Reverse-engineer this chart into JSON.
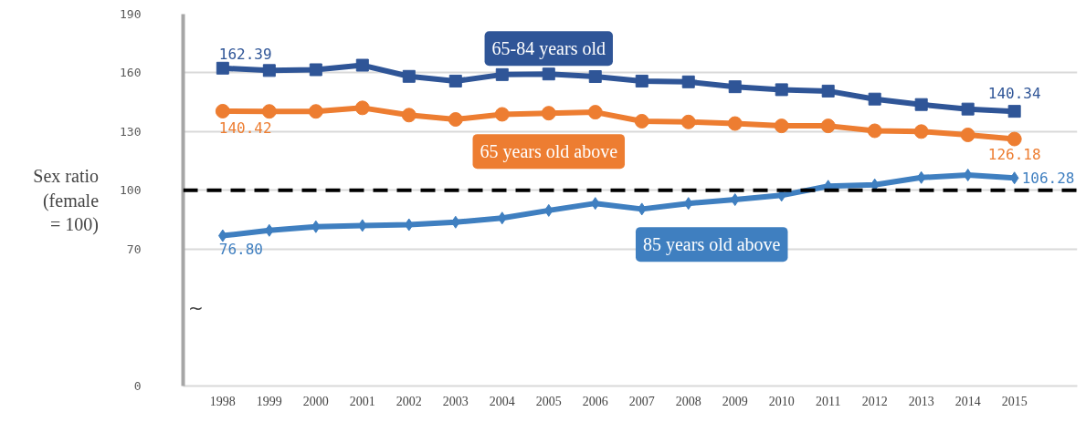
{
  "chart_data": {
    "type": "line",
    "ylabel": "Sex ratio (female = 100)",
    "categories": [
      "1998",
      "1999",
      "2000",
      "2001",
      "2002",
      "2003",
      "2004",
      "2005",
      "2006",
      "2007",
      "2008",
      "2009",
      "2010",
      "2011",
      "2012",
      "2013",
      "2014",
      "2015"
    ],
    "ylim": [
      0,
      190
    ],
    "yticks": [
      0,
      70,
      100,
      130,
      160,
      190
    ],
    "grid": "y",
    "series": [
      {
        "name": "65-84 years old",
        "color": "#2f5597",
        "marker": "square",
        "values": [
          162.39,
          161.2,
          161.6,
          163.9,
          158.2,
          155.8,
          159.1,
          159.4,
          158.1,
          155.8,
          155.4,
          152.9,
          151.4,
          150.7,
          146.6,
          143.8,
          141.5,
          140.34
        ],
        "value_labels": [
          "162.39",
          null,
          null,
          null,
          null,
          null,
          null,
          null,
          null,
          null,
          null,
          null,
          null,
          null,
          null,
          null,
          null,
          "140.34"
        ]
      },
      {
        "name": "65 years old above",
        "color": "#ed7d31",
        "marker": "circle",
        "values": [
          140.42,
          140.3,
          140.3,
          142.1,
          138.4,
          136.2,
          138.8,
          139.4,
          139.9,
          135.3,
          134.9,
          134.1,
          132.9,
          132.9,
          130.4,
          130.0,
          128.3,
          126.18
        ],
        "value_labels": [
          "140.42",
          null,
          null,
          null,
          null,
          null,
          null,
          null,
          null,
          null,
          null,
          null,
          null,
          null,
          null,
          null,
          null,
          "126.18"
        ]
      },
      {
        "name": "85 years old above",
        "color": "#3f7fc0",
        "marker": "diamond",
        "values": [
          76.8,
          79.5,
          81.4,
          82.0,
          82.4,
          83.7,
          85.8,
          89.7,
          93.3,
          90.4,
          93.3,
          95.2,
          97.4,
          102.1,
          102.8,
          106.5,
          107.8,
          106.28
        ],
        "value_labels": [
          "76.80",
          null,
          null,
          null,
          null,
          null,
          null,
          null,
          null,
          null,
          null,
          null,
          null,
          null,
          null,
          null,
          null,
          "106.28"
        ]
      }
    ],
    "ref_lines": [
      {
        "axis": "y",
        "value": 100,
        "color": "#000000",
        "line_style": "dashed"
      }
    ],
    "annotations": [
      "~"
    ]
  }
}
